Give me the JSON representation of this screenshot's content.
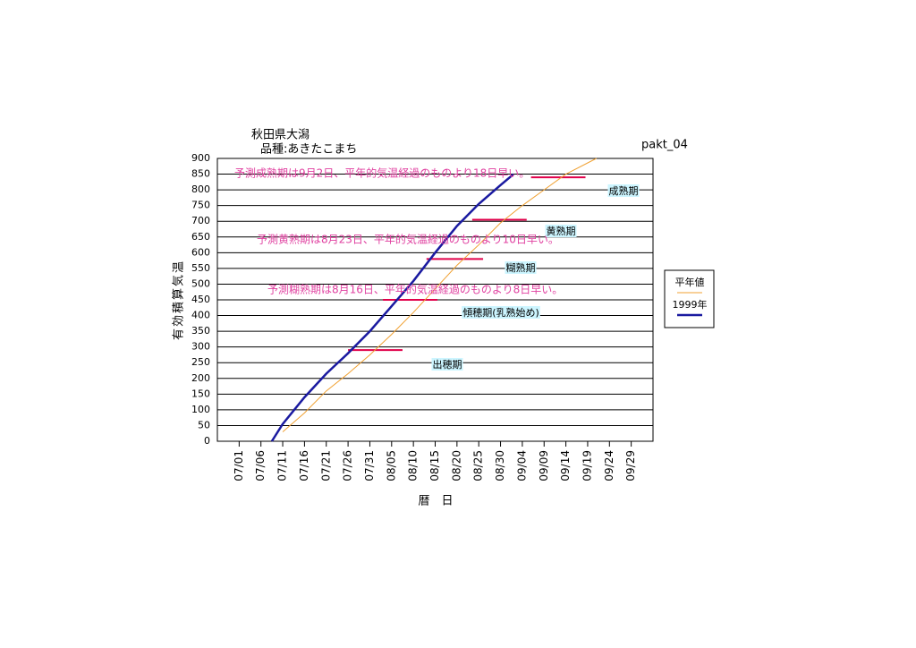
{
  "chart_data": {
    "type": "line",
    "title": "秋田県大潟",
    "subtitle": "品種:あきたこまち",
    "code": "pakt_04",
    "x_label": "暦　日",
    "y_label": "有効積算気温",
    "xlim": [
      -5,
      95
    ],
    "ylim": [
      0,
      900
    ],
    "xticks": [
      {
        "value": 0,
        "label": "07/01"
      },
      {
        "value": 5,
        "label": "07/06"
      },
      {
        "value": 10,
        "label": "07/11"
      },
      {
        "value": 15,
        "label": "07/16"
      },
      {
        "value": 20,
        "label": "07/21"
      },
      {
        "value": 25,
        "label": "07/26"
      },
      {
        "value": 30,
        "label": "07/31"
      },
      {
        "value": 35,
        "label": "08/05"
      },
      {
        "value": 40,
        "label": "08/10"
      },
      {
        "value": 45,
        "label": "08/15"
      },
      {
        "value": 50,
        "label": "08/20"
      },
      {
        "value": 55,
        "label": "08/25"
      },
      {
        "value": 60,
        "label": "08/30"
      },
      {
        "value": 65,
        "label": "09/04"
      },
      {
        "value": 70,
        "label": "09/09"
      },
      {
        "value": 75,
        "label": "09/14"
      },
      {
        "value": 80,
        "label": "09/19"
      },
      {
        "value": 85,
        "label": "09/24"
      },
      {
        "value": 90,
        "label": "09/29"
      }
    ],
    "yticks": [
      0,
      50,
      100,
      150,
      200,
      250,
      300,
      350,
      400,
      450,
      500,
      550,
      600,
      650,
      700,
      750,
      800,
      850,
      900
    ],
    "grid": true,
    "series": [
      {
        "name": "平年値",
        "color": "#f0a030",
        "width": 1,
        "x": [
          10,
          15,
          20,
          25,
          30,
          35,
          40,
          45,
          50,
          55,
          60,
          65,
          70,
          75,
          82
        ],
        "values": [
          30,
          90,
          160,
          215,
          275,
          340,
          410,
          485,
          560,
          625,
          695,
          750,
          800,
          850,
          900
        ]
      },
      {
        "name": "1999年",
        "color": "#1a1aa0",
        "width": 2.5,
        "x": [
          7.5,
          10,
          15,
          20,
          25,
          30,
          35,
          40,
          45,
          50,
          55,
          60,
          63
        ],
        "values": [
          0,
          55,
          140,
          215,
          280,
          350,
          430,
          510,
          600,
          685,
          755,
          815,
          850
        ]
      }
    ],
    "stages": [
      {
        "label": "出穂期",
        "value": 290,
        "x": [
          25,
          37.5
        ]
      },
      {
        "label": "傾穂期(乳熟始め)",
        "value": 450,
        "x": [
          33,
          45.5
        ]
      },
      {
        "label": "糊熟期",
        "value": 580,
        "x": [
          43,
          56
        ]
      },
      {
        "label": "黄熟期",
        "value": 705,
        "x": [
          53.5,
          66
        ]
      },
      {
        "label": "成熟期",
        "value": 840,
        "x": [
          67,
          79.5
        ]
      }
    ],
    "stage_color": "#e0004a",
    "annotations": [
      "予測成熟期は9月2日、平年的気温経過のものより18日早い。",
      "予測黄熟期は8月23日、平年的気温経過のものより10日早い。",
      "予測糊熟期は8月16日、平年的気温経過のものより8日早い。"
    ]
  }
}
